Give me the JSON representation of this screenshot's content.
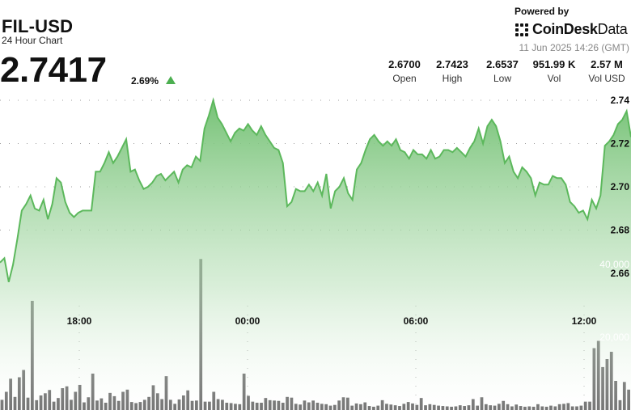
{
  "header": {
    "title": "FIL-USD",
    "subtitle": "24 Hour Chart",
    "price": "2.7417",
    "change": "2.69%",
    "powered_by": "Powered by",
    "brand_main": "CoinDesk",
    "brand_light": "Data",
    "timestamp": "11 Jun 2025 14:26 (GMT)"
  },
  "stats": [
    {
      "value": "2.6700",
      "label": "Open"
    },
    {
      "value": "2.7423",
      "label": "High"
    },
    {
      "value": "2.6537",
      "label": "Low"
    },
    {
      "value": "951.99 K",
      "label": "Vol"
    },
    {
      "value": "2.57 M",
      "label": "Vol USD"
    }
  ],
  "colors": {
    "line": "#5cb85c",
    "area_top": "#7cc47c",
    "volume_bar": "#555555",
    "grid": "#9e9e9e",
    "up_arrow": "#4caf50"
  },
  "chart_data": {
    "type": "line",
    "x_ticks": [
      "18:00",
      "00:00",
      "06:00",
      "12:00"
    ],
    "price_ticks": [
      "2.74",
      "2.72",
      "2.70",
      "2.68",
      "2.66"
    ],
    "price_ylim": [
      2.65,
      2.745
    ],
    "volume_ticks": [
      "40,000",
      "20,000"
    ],
    "volume_ylim": [
      0,
      45000
    ],
    "grid": true,
    "price": [
      2.665,
      2.667,
      2.656,
      2.664,
      2.676,
      2.689,
      2.692,
      2.696,
      2.69,
      2.689,
      2.694,
      2.685,
      2.692,
      2.704,
      2.702,
      2.693,
      2.688,
      2.686,
      2.688,
      2.689,
      2.689,
      2.689,
      2.707,
      2.707,
      2.711,
      2.716,
      2.711,
      2.714,
      2.718,
      2.722,
      2.707,
      2.708,
      2.703,
      2.699,
      2.7,
      2.702,
      2.705,
      2.706,
      2.703,
      2.705,
      2.707,
      2.702,
      2.708,
      2.71,
      2.709,
      2.714,
      2.712,
      2.727,
      2.733,
      2.74,
      2.732,
      2.729,
      2.725,
      2.721,
      2.725,
      2.727,
      2.726,
      2.729,
      2.726,
      2.724,
      2.728,
      2.724,
      2.721,
      2.718,
      2.717,
      2.711,
      2.691,
      2.693,
      2.699,
      2.698,
      2.698,
      2.701,
      2.698,
      2.702,
      2.696,
      2.706,
      2.69,
      2.698,
      2.7,
      2.704,
      2.697,
      2.694,
      2.708,
      2.711,
      2.717,
      2.722,
      2.724,
      2.721,
      2.719,
      2.721,
      2.719,
      2.722,
      2.717,
      2.716,
      2.713,
      2.717,
      2.715,
      2.715,
      2.713,
      2.717,
      2.713,
      2.714,
      2.717,
      2.717,
      2.716,
      2.718,
      2.716,
      2.714,
      2.718,
      2.721,
      2.727,
      2.72,
      2.728,
      2.731,
      2.728,
      2.721,
      2.711,
      2.714,
      2.707,
      2.704,
      2.709,
      2.707,
      2.704,
      2.696,
      2.702,
      2.701,
      2.701,
      2.705,
      2.704,
      2.704,
      2.701,
      2.693,
      2.691,
      2.688,
      2.689,
      2.685,
      2.694,
      2.69,
      2.696,
      2.719,
      2.721,
      2.724,
      2.729,
      2.731,
      2.735,
      2.723
    ],
    "volume": [
      2800,
      5000,
      8600,
      3600,
      9000,
      11000,
      3400,
      30000,
      2700,
      4000,
      4600,
      5500,
      2300,
      3300,
      6000,
      6500,
      2800,
      5000,
      6900,
      2100,
      3500,
      10000,
      2600,
      3200,
      2000,
      4700,
      3800,
      2500,
      5000,
      5600,
      2200,
      1900,
      2200,
      2800,
      3600,
      6800,
      4600,
      3000,
      9300,
      2800,
      1700,
      2900,
      4000,
      5400,
      2500,
      2600,
      41500,
      2300,
      2300,
      5000,
      3000,
      2800,
      2000,
      1900,
      1700,
      1600,
      10000,
      3900,
      2300,
      2000,
      2000,
      3300,
      2700,
      2600,
      2500,
      2000,
      3600,
      3400,
      1700,
      1500,
      2600,
      2100,
      2600,
      2000,
      1700,
      1600,
      1200,
      1400,
      2600,
      3500,
      3400,
      1200,
      1800,
      1600,
      2100,
      1100,
      900,
      1200,
      2700,
      1700,
      1500,
      1300,
      1100,
      1700,
      2200,
      1800,
      1400,
      3300,
      1300,
      1600,
      1400,
      1200,
      1100,
      1000,
      900,
      1000,
      1300,
      1100,
      1300,
      3000,
      1200,
      3500,
      1600,
      1300,
      1200,
      1700,
      2500,
      1600,
      1000,
      1500,
      1100,
      900,
      1000,
      900,
      1600,
      1000,
      900,
      1200,
      1000,
      1600,
      1700,
      1900,
      1000,
      1000,
      1200,
      2300,
      2300,
      17000,
      19000,
      11800,
      14000,
      16000,
      8000,
      2700,
      7700,
      5600
    ]
  }
}
